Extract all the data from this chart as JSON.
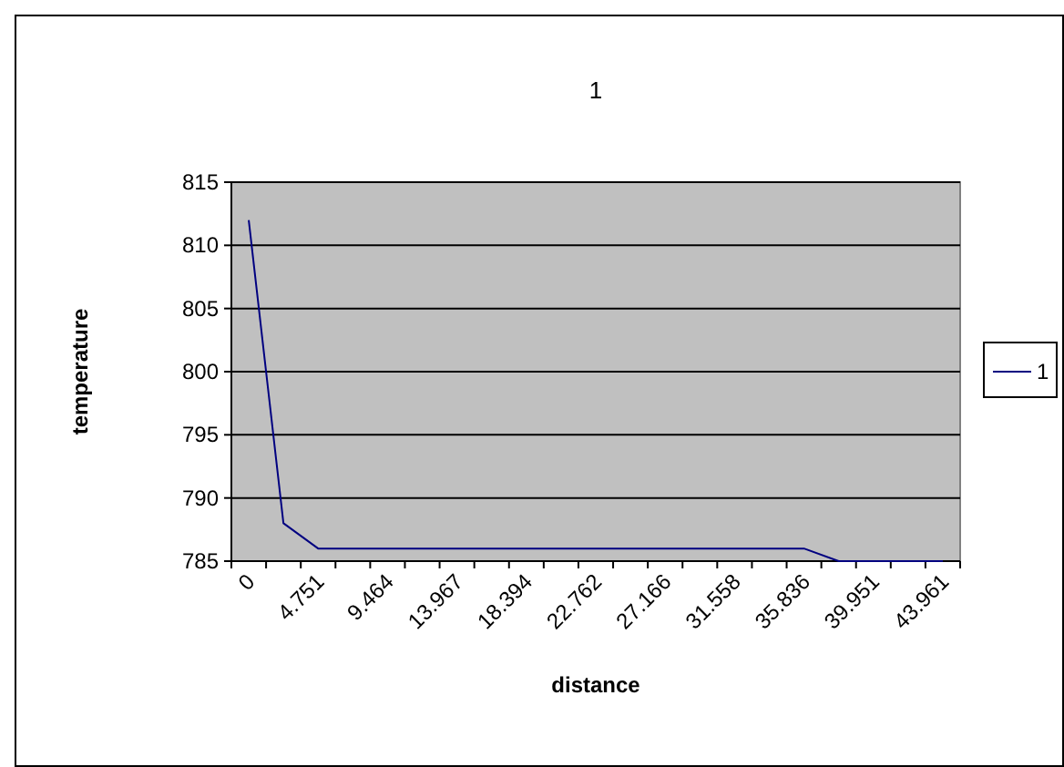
{
  "chart_data": {
    "type": "line",
    "title": "1",
    "xlabel": "distance",
    "ylabel": "temperature",
    "categories": [
      "0",
      null,
      "4.751",
      null,
      "9.464",
      null,
      "13.967",
      null,
      "18.394",
      null,
      "22.762",
      null,
      "27.166",
      null,
      "31.558",
      null,
      "35.836",
      null,
      "39.951",
      null,
      "43.961"
    ],
    "series": [
      {
        "name": "1",
        "color": "#000080",
        "values": [
          812,
          788,
          786,
          786,
          786,
          786,
          786,
          786,
          786,
          786,
          786,
          786,
          786,
          786,
          786,
          786,
          786,
          785,
          785,
          785,
          785
        ]
      }
    ],
    "ylim": [
      785,
      815
    ],
    "yticks": [
      785,
      790,
      795,
      800,
      805,
      810,
      815
    ],
    "grid": "y",
    "legend": "right",
    "marker": "none",
    "line_style": "solid"
  }
}
